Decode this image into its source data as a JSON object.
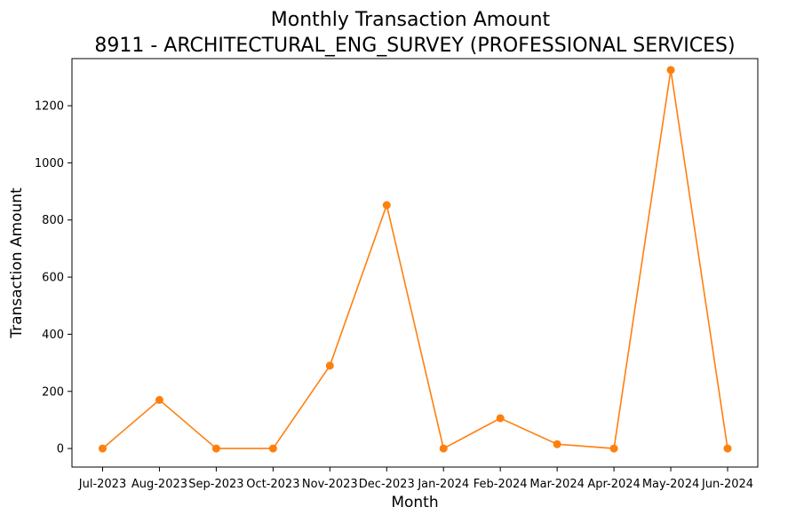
{
  "chart_data": {
    "type": "line",
    "title": "Monthly Transaction Amount",
    "subtitle": "8911 - ARCHITECTURAL_ENG_SURVEY (PROFESSIONAL SERVICES)",
    "xlabel": "Month",
    "ylabel": "Transaction Amount",
    "categories": [
      "Jul-2023",
      "Aug-2023",
      "Sep-2023",
      "Oct-2023",
      "Nov-2023",
      "Dec-2023",
      "Jan-2024",
      "Feb-2024",
      "Mar-2024",
      "Apr-2024",
      "May-2024",
      "Jun-2024"
    ],
    "series": [
      {
        "values": [
          0,
          170,
          0,
          0,
          290,
          852,
          0,
          106,
          15,
          0,
          1325,
          0
        ],
        "color": "#ff7f0e"
      }
    ],
    "yticks": [
      0,
      200,
      400,
      600,
      800,
      1000,
      1200
    ],
    "ylim": [
      -65,
      1365
    ],
    "grid": false,
    "legend": "none",
    "marker": "circle"
  }
}
